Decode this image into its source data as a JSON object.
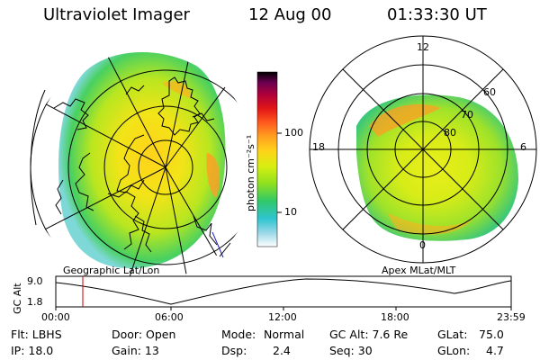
{
  "header": {
    "title": "Ultraviolet Imager",
    "date": "12 Aug 00",
    "time": "01:33:30 UT"
  },
  "left_panel": {
    "caption": "Geographic Lat/Lon"
  },
  "right_panel": {
    "caption": "Apex MLat/MLT",
    "mlt_labels": [
      "12",
      "18",
      "6",
      "0"
    ],
    "mlat_labels": [
      "60",
      "70",
      "80"
    ]
  },
  "colorbar": {
    "unit_label": "photon cm⁻²s⁻¹",
    "tick_labels": [
      "100",
      "10"
    ],
    "scale": "log",
    "colors": [
      "#ffffff",
      "#9ad8e8",
      "#2fc4d0",
      "#30c86a",
      "#8ee020",
      "#d8ee10",
      "#ffd21a",
      "#ffa020",
      "#ff5a1e",
      "#e21616",
      "#b0003a",
      "#6a0050",
      "#000000"
    ]
  },
  "altitude_plot": {
    "ylabel": "GC Alt",
    "yticks": [
      "9.0",
      "1.8"
    ],
    "xticks": [
      "00:00",
      "06:00",
      "12:00",
      "18:00",
      "23:59"
    ],
    "current_time_marker_color": "#cc0000"
  },
  "info": {
    "flt": "Flt: LBHS",
    "ip": "IP: 18.0",
    "door": "Door: Open",
    "gain": "Gain: 13",
    "mode_label": "Mode:",
    "mode_value": "Normal",
    "dsp_label": "Dsp:",
    "dsp_value": "2.4",
    "gcalt": "GC Alt: 7.6 Re",
    "seq": "Seq: 30",
    "glat_label": "GLat:",
    "glat_value": "75.0",
    "glon_label": "GLon:",
    "glon_value": "4.7"
  }
}
